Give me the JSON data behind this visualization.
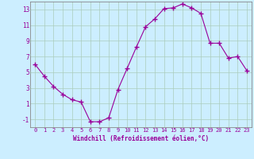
{
  "x": [
    0,
    1,
    2,
    3,
    4,
    5,
    6,
    7,
    8,
    9,
    10,
    11,
    12,
    13,
    14,
    15,
    16,
    17,
    18,
    19,
    20,
    21,
    22,
    23
  ],
  "y": [
    6.0,
    4.5,
    3.2,
    2.2,
    1.5,
    1.2,
    -1.3,
    -1.3,
    -0.8,
    2.8,
    5.5,
    8.2,
    10.8,
    11.8,
    13.1,
    13.2,
    13.7,
    13.2,
    12.5,
    8.7,
    8.7,
    6.8,
    7.0,
    5.2
  ],
  "line_color": "#990099",
  "marker": "+",
  "marker_size": 4,
  "bg_color": "#cceeff",
  "grid_color": "#aaccbb",
  "xlabel": "Windchill (Refroidissement éolien,°C)",
  "xlabel_color": "#990099",
  "tick_color": "#990099",
  "ylim": [
    -2,
    14
  ],
  "yticks": [
    -1,
    1,
    3,
    5,
    7,
    9,
    11,
    13
  ],
  "xticks": [
    0,
    1,
    2,
    3,
    4,
    5,
    6,
    7,
    8,
    9,
    10,
    11,
    12,
    13,
    14,
    15,
    16,
    17,
    18,
    19,
    20,
    21,
    22,
    23
  ],
  "spine_color": "#888888",
  "xlim": [
    -0.5,
    23.5
  ]
}
